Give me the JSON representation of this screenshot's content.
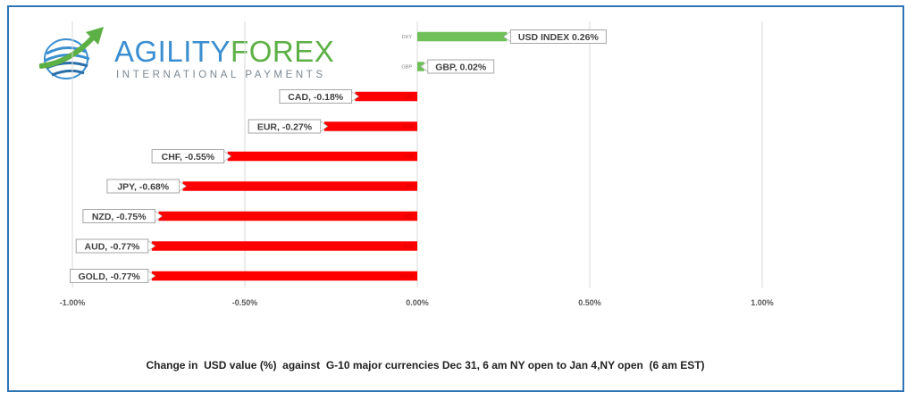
{
  "logo": {
    "name_part1": "AGILITY",
    "name_part2": "FOREX",
    "tagline": "INTERNATIONAL PAYMENTS",
    "icon": "swoosh-globe-icon",
    "colors": {
      "blue": "#3b8fd1",
      "green": "#5db045",
      "gray": "#7b8792"
    }
  },
  "caption": "Change in  USD value (%)  against  G-10 major currencies Dec 31, 6 am NY open to Jan 4,NY open  (6 am EST)",
  "colors": {
    "positive": "#70c05a",
    "negative": "#ff0000",
    "frame": "#2f75b5",
    "grid": "#d9d9d9"
  },
  "chart_data": {
    "type": "bar",
    "orientation": "horizontal",
    "categories": [
      "DXY",
      "GBP",
      "CAD",
      "EUR",
      "CHF",
      "JPY",
      "NZD",
      "AUD",
      "GOLD"
    ],
    "values": [
      0.26,
      0.02,
      -0.18,
      -0.27,
      -0.55,
      -0.68,
      -0.75,
      -0.77,
      -0.77
    ],
    "data_labels": [
      "USD INDEX 0.26%",
      "GBP, 0.02%",
      "CAD, -0.18%",
      "EUR, -0.27%",
      "CHF, -0.55%",
      "JPY, -0.68%",
      "NZD, -0.75%",
      "AUD, -0.77%",
      "GOLD, -0.77%"
    ],
    "x_ticks": [
      "-1.00%",
      "-0.50%",
      "0.00%",
      "0.50%",
      "1.00%"
    ],
    "x_tick_values": [
      -1.0,
      -0.5,
      0.0,
      0.5,
      1.0
    ],
    "xlim": [
      -1.0,
      1.25
    ],
    "title": "",
    "xlabel": "",
    "ylabel": "",
    "grid": true,
    "legend": false
  }
}
